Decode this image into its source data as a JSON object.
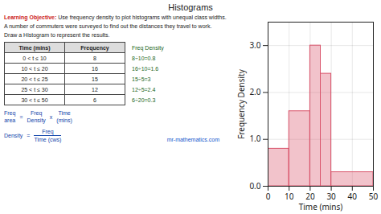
{
  "chart_data": {
    "type": "histogram",
    "title": "Histograms",
    "xlabel": "Time (mins)",
    "ylabel": "Frequency Density",
    "bins": [
      0,
      10,
      20,
      25,
      30,
      50
    ],
    "values": [
      0.8,
      1.6,
      3.0,
      2.4,
      0.3
    ],
    "color": "#d9536a",
    "xlim": [
      0,
      50
    ],
    "ylim": [
      0,
      3.5
    ],
    "xticks": [
      0,
      10,
      20,
      30,
      40,
      50
    ],
    "yticks": [
      0,
      1,
      2,
      3
    ],
    "grid": true,
    "annotations": [
      "Learning Objective:",
      "Use frequency density to plot histograms with unequal class widths.",
      "A number of commuters were surveyed to find out the distances they travel to work.",
      "Draw a Histogram to represent the results.",
      "mr-mathematics.com"
    ],
    "table": {
      "columns": [
        "Time (mins)",
        "Frequency",
        "Freq Density"
      ],
      "rows": [
        [
          "0 < t ≤ 10",
          "8",
          "8÷10=0.8"
        ],
        [
          "10 < t ≤ 20",
          "16",
          "16÷10=1.6"
        ],
        [
          "20 < t ≤ 25",
          "15",
          "15÷5=3"
        ],
        [
          "25 < t ≤ 30",
          "12",
          "12÷5=2.4"
        ],
        [
          "30 < t ≤ 50",
          "6",
          "6÷20=0.3"
        ]
      ]
    },
    "formulas": [
      [
        [
          "Freq",
          "area"
        ],
        "=",
        [
          "Freq",
          "Density"
        ],
        "x",
        [
          "Time",
          "(mins)"
        ]
      ],
      [
        [
          "Density"
        ],
        "=",
        [
          "Freq",
          "Time (cws)"
        ]
      ]
    ]
  }
}
